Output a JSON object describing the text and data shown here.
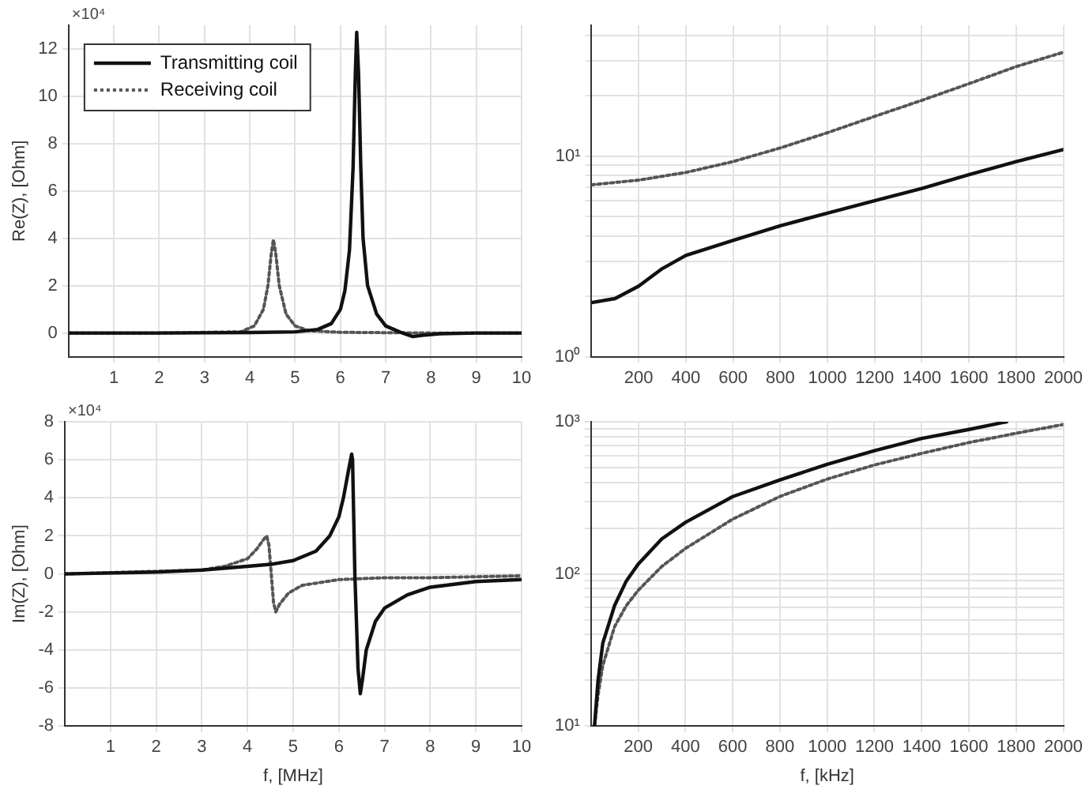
{
  "chart_data": [
    {
      "type": "line",
      "ylabel": "Re(Z), [Ohm]",
      "annotations": [
        "×10⁴"
      ],
      "xlim": [
        0,
        10
      ],
      "xticks": [
        1,
        2,
        3,
        4,
        5,
        6,
        7,
        8,
        9,
        10
      ],
      "ylim": [
        -1,
        13
      ],
      "yticks": [
        0,
        2,
        4,
        6,
        8,
        10,
        12
      ],
      "grid": true,
      "legend": "top left",
      "series": [
        {
          "name": "Transmitting coil",
          "color": "#111111",
          "line_style": "solid",
          "x": [
            0,
            2,
            4,
            5,
            5.5,
            5.8,
            6.0,
            6.1,
            6.2,
            6.28,
            6.33,
            6.36,
            6.4,
            6.45,
            6.5,
            6.6,
            6.8,
            7.0,
            7.3,
            7.6,
            7.8,
            8.2,
            9,
            10
          ],
          "values": [
            0,
            0,
            0.02,
            0.05,
            0.15,
            0.4,
            1.0,
            1.8,
            3.5,
            7,
            11,
            12.7,
            11,
            7,
            4,
            2,
            0.8,
            0.3,
            0.05,
            -0.15,
            -0.1,
            -0.03,
            0,
            0
          ]
        },
        {
          "name": "Receiving coil",
          "color": "#555555",
          "line_style": "dotted",
          "x": [
            0,
            2,
            3.8,
            4.1,
            4.3,
            4.4,
            4.47,
            4.52,
            4.57,
            4.65,
            4.8,
            5.0,
            5.3,
            6,
            8,
            10
          ],
          "values": [
            0,
            0,
            0.05,
            0.3,
            1,
            2,
            3.3,
            3.95,
            3.4,
            2,
            0.8,
            0.3,
            0.1,
            0.03,
            0,
            0
          ]
        }
      ]
    },
    {
      "type": "line",
      "log": true,
      "xlim": [
        0,
        2000
      ],
      "xticks": [
        200,
        400,
        600,
        800,
        1000,
        1200,
        1400,
        1600,
        1800,
        2000
      ],
      "ylim": [
        1,
        45
      ],
      "yticks": [
        {
          "value": 1,
          "label": "10⁰"
        },
        {
          "value": 2,
          "label": null
        },
        {
          "value": 3,
          "label": null
        },
        {
          "value": 4,
          "label": null
        },
        {
          "value": 5,
          "label": null
        },
        {
          "value": 6,
          "label": null
        },
        {
          "value": 7,
          "label": null
        },
        {
          "value": 8,
          "label": null
        },
        {
          "value": 9,
          "label": null
        },
        {
          "value": 10,
          "label": "10¹"
        },
        {
          "value": 20,
          "label": null
        },
        {
          "value": 30,
          "label": null
        },
        {
          "value": 40,
          "label": null
        }
      ],
      "grid": true,
      "series": [
        {
          "color": "#111111",
          "line_style": "solid",
          "x": [
            0,
            100,
            200,
            300,
            400,
            600,
            800,
            1000,
            1200,
            1400,
            1600,
            1800,
            2000
          ],
          "values": [
            1.86,
            1.95,
            2.25,
            2.75,
            3.2,
            3.8,
            4.5,
            5.2,
            6.0,
            6.9,
            8.1,
            9.4,
            10.8
          ]
        },
        {
          "color": "#555555",
          "line_style": "dotted",
          "x": [
            0,
            200,
            400,
            600,
            800,
            1000,
            1200,
            1400,
            1600,
            1800,
            2000
          ],
          "values": [
            7.2,
            7.6,
            8.3,
            9.4,
            11,
            13.1,
            15.8,
            19,
            23,
            28,
            33
          ]
        }
      ]
    },
    {
      "type": "line",
      "ylabel": "Im(Z), [Ohm]",
      "xlabel": "f, [MHz]",
      "annotations": [
        "×10⁴"
      ],
      "xlim": [
        0,
        10
      ],
      "xticks": [
        1,
        2,
        3,
        4,
        5,
        6,
        7,
        8,
        9,
        10
      ],
      "ylim": [
        -8,
        8
      ],
      "yticks": [
        -8,
        -6,
        -4,
        -2,
        0,
        2,
        4,
        6,
        8
      ],
      "grid": true,
      "series": [
        {
          "color": "#111111",
          "line_style": "solid",
          "x": [
            0,
            2,
            3,
            4,
            4.5,
            5,
            5.5,
            5.8,
            6.0,
            6.1,
            6.2,
            6.28,
            6.3,
            6.35,
            6.42,
            6.47,
            6.52,
            6.6,
            6.8,
            7,
            7.5,
            8,
            9,
            10
          ],
          "values": [
            0,
            0.1,
            0.2,
            0.4,
            0.5,
            0.7,
            1.2,
            2,
            3,
            4,
            5.3,
            6.3,
            6.0,
            0,
            -5,
            -6.3,
            -5.5,
            -4,
            -2.5,
            -1.8,
            -1.1,
            -0.7,
            -0.4,
            -0.3
          ]
        },
        {
          "color": "#555555",
          "line_style": "dotted",
          "x": [
            0,
            3,
            3.5,
            4,
            4.2,
            4.35,
            4.42,
            4.47,
            4.52,
            4.57,
            4.62,
            4.7,
            4.9,
            5.2,
            6,
            7,
            8,
            10
          ],
          "values": [
            0,
            0.2,
            0.4,
            0.8,
            1.3,
            1.8,
            2.0,
            1.5,
            0,
            -1.5,
            -2.0,
            -1.6,
            -1,
            -0.6,
            -0.3,
            -0.2,
            -0.2,
            -0.1
          ]
        }
      ]
    },
    {
      "type": "line",
      "log": true,
      "xlabel": "f, [kHz]",
      "xlim": [
        0,
        2000
      ],
      "xticks": [
        200,
        400,
        600,
        800,
        1000,
        1200,
        1400,
        1600,
        1800,
        2000
      ],
      "ylim": [
        10,
        1000
      ],
      "yticks": [
        {
          "value": 10,
          "label": "10¹"
        },
        {
          "value": 20,
          "label": null
        },
        {
          "value": 30,
          "label": null
        },
        {
          "value": 40,
          "label": null
        },
        {
          "value": 50,
          "label": null
        },
        {
          "value": 60,
          "label": null
        },
        {
          "value": 70,
          "label": null
        },
        {
          "value": 80,
          "label": null
        },
        {
          "value": 90,
          "label": null
        },
        {
          "value": 100,
          "label": "10²"
        },
        {
          "value": 200,
          "label": null
        },
        {
          "value": 300,
          "label": null
        },
        {
          "value": 400,
          "label": null
        },
        {
          "value": 500,
          "label": null
        },
        {
          "value": 600,
          "label": null
        },
        {
          "value": 700,
          "label": null
        },
        {
          "value": 800,
          "label": null
        },
        {
          "value": 900,
          "label": null
        },
        {
          "value": 1000,
          "label": "10³"
        }
      ],
      "grid": true,
      "series": [
        {
          "color": "#111111",
          "line_style": "solid",
          "x": [
            15,
            30,
            50,
            100,
            150,
            200,
            300,
            400,
            600,
            800,
            1000,
            1200,
            1400,
            1600,
            1760
          ],
          "values": [
            10,
            20,
            35,
            62,
            90,
            116,
            170,
            218,
            322,
            415,
            525,
            645,
            776,
            890,
            1000
          ]
        },
        {
          "color": "#555555",
          "line_style": "dotted",
          "x": [
            15,
            30,
            50,
            100,
            150,
            200,
            300,
            400,
            600,
            800,
            1000,
            1200,
            1400,
            1600,
            1800,
            2000
          ],
          "values": [
            10,
            16,
            25,
            45,
            62,
            78,
            112,
            147,
            229,
            323,
            420,
            520,
            620,
            730,
            840,
            960
          ]
        }
      ]
    }
  ]
}
